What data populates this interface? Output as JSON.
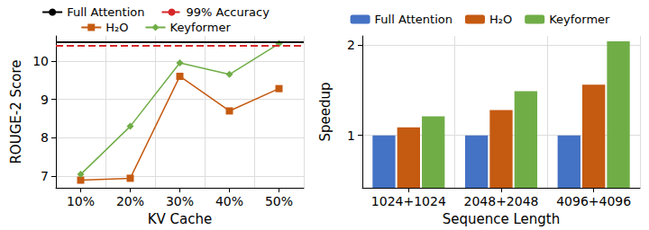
{
  "chart_data": [
    {
      "type": "line",
      "x_label": "KV Cache",
      "y_label": "ROUGE-2 Score",
      "categories": [
        "10%",
        "20%",
        "30%",
        "40%",
        "50%"
      ],
      "series": [
        {
          "name": "Full Attention",
          "type": "hline",
          "value": 10.5,
          "color": "#000000",
          "line_style": "solid"
        },
        {
          "name": "99% Accuracy",
          "type": "hline",
          "value": 10.4,
          "color": "#d62728",
          "line_style": "dashed"
        },
        {
          "name": "H₂O",
          "type": "line",
          "color": "#c55a11",
          "marker": "square",
          "line_style": "solid",
          "values": [
            6.9,
            6.95,
            9.6,
            8.7,
            9.28
          ]
        },
        {
          "name": "Keyformer",
          "type": "line",
          "color": "#70ad47",
          "marker": "diamond",
          "line_style": "solid",
          "values": [
            7.05,
            8.3,
            9.95,
            9.65,
            10.45
          ]
        }
      ],
      "ylim": [
        6.7,
        10.65
      ],
      "yticks": [
        7,
        8,
        9,
        10
      ],
      "grid": true,
      "legend": "top"
    },
    {
      "type": "bar",
      "x_label": "Sequence Length",
      "y_label": "Speedup",
      "categories": [
        "1024+1024",
        "2048+2048",
        "4096+4096"
      ],
      "series": [
        {
          "name": "Full Attention",
          "color": "#4472c4",
          "values": [
            1.0,
            1.0,
            1.0
          ]
        },
        {
          "name": "H₂O",
          "color": "#c55a11",
          "values": [
            1.09,
            1.28,
            1.56
          ]
        },
        {
          "name": "Keyformer",
          "color": "#70ad47",
          "values": [
            1.21,
            1.49,
            2.04
          ]
        }
      ],
      "ylim": [
        0.42,
        2.1
      ],
      "yticks": [
        1,
        2
      ],
      "grid": true,
      "legend": "top"
    }
  ]
}
